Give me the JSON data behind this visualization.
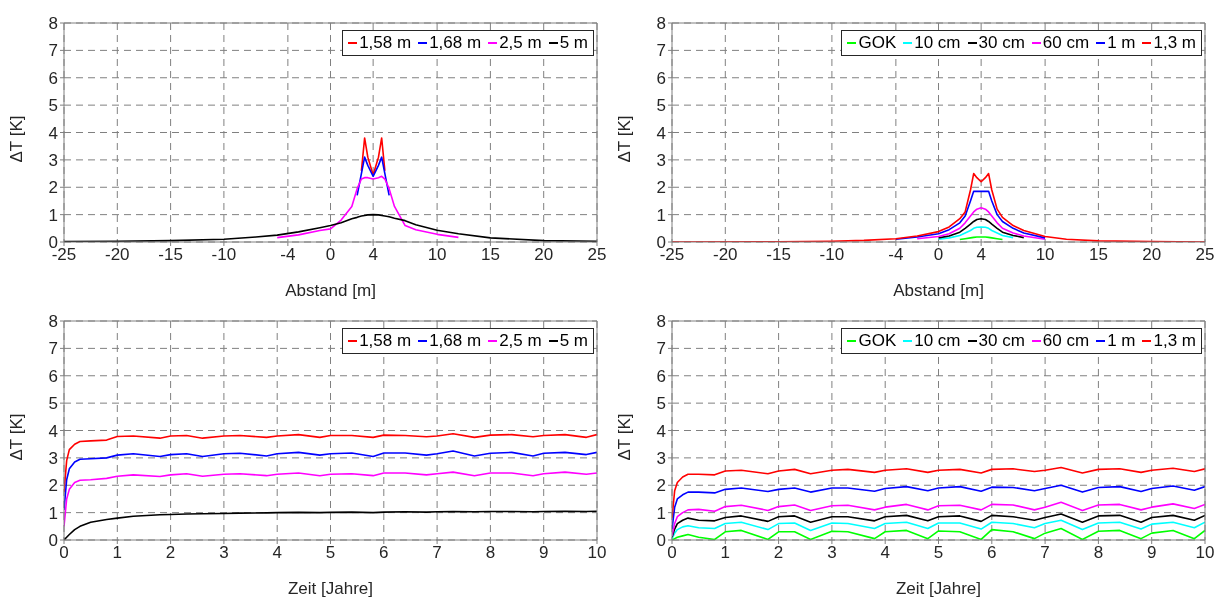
{
  "chart_data": [
    {
      "type": "line",
      "xlabel": "Abstand [m]",
      "ylabel": "ΔT [K]",
      "grid": true,
      "legend": "top right",
      "xlim": [
        -25,
        25
      ],
      "xticks": [
        -25,
        -20,
        -15,
        -10,
        -4,
        0,
        4,
        10,
        15,
        20,
        25
      ],
      "ylim": [
        0,
        8
      ],
      "yticks": [
        0,
        1,
        2,
        3,
        4,
        5,
        6,
        7,
        8
      ],
      "x": [
        -25,
        -20,
        -15,
        -10,
        -7,
        -5,
        -3,
        -1,
        0,
        1,
        2,
        2.5,
        2.9,
        3.2,
        3.5,
        4,
        4.5,
        4.8,
        5.1,
        5.5,
        6,
        7,
        8,
        10,
        12,
        15,
        20,
        25
      ],
      "series": [
        {
          "name": "1,58 m",
          "color": "#ff0000",
          "values": [
            null,
            null,
            null,
            null,
            null,
            null,
            null,
            null,
            null,
            null,
            null,
            null,
            2.6,
            3.8,
            3.1,
            2.45,
            3.1,
            3.8,
            2.6,
            null,
            null,
            null,
            null,
            null,
            null,
            null,
            null,
            null
          ]
        },
        {
          "name": "1,68 m",
          "color": "#0000ff",
          "values": [
            null,
            null,
            null,
            null,
            null,
            null,
            null,
            null,
            null,
            null,
            null,
            1.7,
            2.5,
            3.1,
            2.8,
            2.4,
            2.8,
            3.1,
            2.5,
            1.7,
            null,
            null,
            null,
            null,
            null,
            null,
            null,
            null
          ]
        },
        {
          "name": "2,5 m",
          "color": "#ff00ff",
          "values": [
            null,
            null,
            null,
            null,
            null,
            0.16,
            0.26,
            0.42,
            0.48,
            0.8,
            1.3,
            1.95,
            2.3,
            2.35,
            2.35,
            2.3,
            2.35,
            2.4,
            2.3,
            1.95,
            1.3,
            0.6,
            0.45,
            0.28,
            0.17,
            null,
            null,
            null
          ]
        },
        {
          "name": "5 m",
          "color": "#000000",
          "values": [
            0.02,
            0.03,
            0.05,
            0.1,
            0.18,
            0.25,
            0.37,
            0.52,
            0.6,
            0.7,
            0.85,
            0.9,
            0.95,
            0.97,
            0.99,
            1.0,
            0.99,
            0.97,
            0.95,
            0.92,
            0.87,
            0.78,
            0.63,
            0.43,
            0.3,
            0.15,
            0.05,
            0.03
          ]
        }
      ]
    },
    {
      "type": "line",
      "xlabel": "Abstand [m]",
      "ylabel": "ΔT [K]",
      "grid": true,
      "legend": "top right",
      "xlim": [
        -25,
        25
      ],
      "xticks": [
        -25,
        -20,
        -15,
        -10,
        -4,
        0,
        4,
        10,
        15,
        20,
        25
      ],
      "ylim": [
        0,
        8
      ],
      "yticks": [
        0,
        1,
        2,
        3,
        4,
        5,
        6,
        7,
        8
      ],
      "x": [
        -25,
        -15,
        -10,
        -7,
        -4,
        -2,
        0,
        1,
        2,
        2.5,
        3,
        3.3,
        3.6,
        4,
        4.4,
        4.7,
        5,
        5.5,
        6,
        7,
        8,
        10,
        12,
        15,
        20,
        25
      ],
      "series": [
        {
          "name": "GOK",
          "color": "#00ff00",
          "values": [
            null,
            null,
            null,
            null,
            null,
            null,
            null,
            null,
            0.09,
            0.12,
            0.15,
            0.17,
            0.18,
            0.18,
            0.18,
            0.17,
            0.15,
            0.12,
            0.09,
            null,
            null,
            null,
            null,
            null,
            null,
            null
          ]
        },
        {
          "name": "10 cm",
          "color": "#00ffff",
          "values": [
            null,
            null,
            null,
            null,
            null,
            null,
            0.1,
            0.15,
            0.24,
            0.33,
            0.42,
            0.5,
            0.54,
            0.55,
            0.54,
            0.5,
            0.42,
            0.33,
            0.24,
            0.16,
            null,
            null,
            null,
            null,
            null,
            null
          ]
        },
        {
          "name": "30 cm",
          "color": "#000000",
          "values": [
            null,
            null,
            null,
            null,
            null,
            null,
            0.15,
            0.22,
            0.36,
            0.5,
            0.65,
            0.75,
            0.82,
            0.85,
            0.82,
            0.75,
            0.65,
            0.5,
            0.36,
            0.24,
            0.16,
            null,
            null,
            null,
            null,
            null
          ]
        },
        {
          "name": "60 cm",
          "color": "#ff00ff",
          "values": [
            null,
            null,
            null,
            null,
            null,
            0.12,
            0.2,
            0.3,
            0.5,
            0.7,
            0.95,
            1.1,
            1.2,
            1.25,
            1.2,
            1.1,
            0.95,
            0.7,
            0.5,
            0.33,
            0.22,
            0.1,
            null,
            null,
            null,
            null
          ]
        },
        {
          "name": "1 m",
          "color": "#0000ff",
          "values": [
            null,
            null,
            null,
            null,
            0.1,
            0.18,
            0.3,
            0.45,
            0.7,
            0.95,
            1.5,
            1.85,
            1.85,
            1.85,
            1.85,
            1.85,
            1.5,
            1.0,
            0.75,
            0.5,
            0.33,
            0.15,
            null,
            null,
            null,
            null
          ]
        },
        {
          "name": "1,3 m",
          "color": "#ff0000",
          "values": [
            0,
            0.01,
            0.03,
            0.06,
            0.12,
            0.22,
            0.38,
            0.55,
            0.85,
            1.1,
            1.9,
            2.5,
            2.35,
            2.2,
            2.35,
            2.5,
            1.9,
            1.2,
            0.9,
            0.6,
            0.42,
            0.2,
            0.1,
            0.04,
            0.02,
            0
          ]
        }
      ]
    },
    {
      "type": "line",
      "xlabel": "Zeit [Jahre]",
      "ylabel": "ΔT [K]",
      "grid": true,
      "legend": "top right",
      "xlim": [
        0,
        10
      ],
      "xticks": [
        0,
        1,
        2,
        3,
        4,
        5,
        6,
        7,
        8,
        9,
        10
      ],
      "ylim": [
        0,
        8
      ],
      "yticks": [
        0,
        1,
        2,
        3,
        4,
        5,
        6,
        7,
        8
      ],
      "x": [
        0,
        0.05,
        0.1,
        0.2,
        0.3,
        0.5,
        0.8,
        1,
        1.3,
        1.8,
        2,
        2.3,
        2.6,
        3,
        3.3,
        3.8,
        4,
        4.4,
        4.8,
        5,
        5.4,
        5.8,
        6,
        6.4,
        6.8,
        7,
        7.3,
        7.7,
        8,
        8.4,
        8.8,
        9,
        9.4,
        9.8,
        10
      ],
      "series": [
        {
          "name": "1,58 m",
          "color": "#ff0000",
          "values": [
            1.75,
            2.9,
            3.3,
            3.5,
            3.6,
            3.62,
            3.65,
            3.78,
            3.8,
            3.72,
            3.8,
            3.82,
            3.72,
            3.8,
            3.82,
            3.75,
            3.8,
            3.85,
            3.75,
            3.82,
            3.82,
            3.75,
            3.83,
            3.82,
            3.77,
            3.8,
            3.88,
            3.75,
            3.83,
            3.85,
            3.77,
            3.82,
            3.85,
            3.75,
            3.85
          ]
        },
        {
          "name": "1,68 m",
          "color": "#0000ff",
          "values": [
            1.1,
            2.2,
            2.6,
            2.85,
            2.95,
            2.97,
            3.0,
            3.1,
            3.15,
            3.05,
            3.12,
            3.15,
            3.05,
            3.15,
            3.17,
            3.07,
            3.15,
            3.2,
            3.1,
            3.15,
            3.18,
            3.05,
            3.18,
            3.18,
            3.1,
            3.15,
            3.25,
            3.07,
            3.17,
            3.2,
            3.07,
            3.17,
            3.2,
            3.12,
            3.2
          ]
        },
        {
          "name": "2,5 m",
          "color": "#ff00ff",
          "values": [
            0.5,
            1.5,
            1.85,
            2.1,
            2.18,
            2.2,
            2.25,
            2.33,
            2.38,
            2.32,
            2.38,
            2.42,
            2.33,
            2.4,
            2.42,
            2.35,
            2.4,
            2.45,
            2.35,
            2.4,
            2.42,
            2.35,
            2.45,
            2.45,
            2.38,
            2.42,
            2.48,
            2.35,
            2.45,
            2.45,
            2.35,
            2.42,
            2.48,
            2.4,
            2.45
          ]
        },
        {
          "name": "5 m",
          "color": "#000000",
          "values": [
            0,
            0.1,
            0.2,
            0.38,
            0.5,
            0.65,
            0.75,
            0.8,
            0.87,
            0.92,
            0.93,
            0.95,
            0.96,
            0.97,
            0.98,
            0.99,
            1.0,
            1.01,
            1.0,
            1.01,
            1.02,
            1.0,
            1.02,
            1.03,
            1.02,
            1.03,
            1.04,
            1.03,
            1.04,
            1.04,
            1.03,
            1.04,
            1.05,
            1.04,
            1.05
          ]
        }
      ]
    },
    {
      "type": "line",
      "xlabel": "Zeit [Jahre]",
      "ylabel": "ΔT [K]",
      "grid": true,
      "legend": "top right",
      "xlim": [
        0,
        10
      ],
      "xticks": [
        0,
        1,
        2,
        3,
        4,
        5,
        6,
        7,
        8,
        9,
        10
      ],
      "ylim": [
        0,
        8
      ],
      "yticks": [
        0,
        1,
        2,
        3,
        4,
        5,
        6,
        7,
        8
      ],
      "x": [
        0,
        0.05,
        0.1,
        0.2,
        0.3,
        0.5,
        0.8,
        1,
        1.3,
        1.8,
        2,
        2.3,
        2.6,
        3,
        3.3,
        3.8,
        4,
        4.4,
        4.8,
        5,
        5.4,
        5.8,
        6,
        6.4,
        6.8,
        7,
        7.3,
        7.7,
        8,
        8.4,
        8.8,
        9,
        9.4,
        9.8,
        10
      ],
      "series": [
        {
          "name": "GOK",
          "color": "#00ff00",
          "values": [
            0,
            0.05,
            0.1,
            0.15,
            0.2,
            0.1,
            0.02,
            0.3,
            0.35,
            0.02,
            0.3,
            0.3,
            0.02,
            0.32,
            0.3,
            0.05,
            0.3,
            0.35,
            0.05,
            0.33,
            0.3,
            0.02,
            0.38,
            0.3,
            0.05,
            0.25,
            0.42,
            0.02,
            0.32,
            0.35,
            0.05,
            0.25,
            0.35,
            0.05,
            0.35
          ]
        },
        {
          "name": "10 cm",
          "color": "#00ffff",
          "values": [
            0.05,
            0.25,
            0.38,
            0.48,
            0.52,
            0.45,
            0.42,
            0.6,
            0.65,
            0.38,
            0.6,
            0.62,
            0.35,
            0.62,
            0.6,
            0.42,
            0.6,
            0.65,
            0.42,
            0.62,
            0.62,
            0.4,
            0.65,
            0.6,
            0.45,
            0.6,
            0.72,
            0.38,
            0.62,
            0.65,
            0.4,
            0.58,
            0.65,
            0.45,
            0.65
          ]
        },
        {
          "name": "30 cm",
          "color": "#000000",
          "values": [
            0.1,
            0.4,
            0.6,
            0.72,
            0.8,
            0.72,
            0.7,
            0.82,
            0.88,
            0.68,
            0.85,
            0.88,
            0.65,
            0.85,
            0.85,
            0.7,
            0.85,
            0.9,
            0.7,
            0.85,
            0.88,
            0.68,
            0.9,
            0.85,
            0.72,
            0.82,
            0.95,
            0.65,
            0.88,
            0.9,
            0.65,
            0.82,
            0.9,
            0.72,
            0.9
          ]
        },
        {
          "name": "60 cm",
          "color": "#ff00ff",
          "values": [
            0.15,
            0.6,
            0.85,
            1.0,
            1.1,
            1.12,
            1.05,
            1.22,
            1.27,
            1.08,
            1.22,
            1.28,
            1.08,
            1.25,
            1.27,
            1.1,
            1.2,
            1.3,
            1.1,
            1.25,
            1.27,
            1.1,
            1.3,
            1.28,
            1.1,
            1.2,
            1.38,
            1.08,
            1.28,
            1.3,
            1.1,
            1.2,
            1.32,
            1.15,
            1.3
          ]
        },
        {
          "name": "1 m",
          "color": "#0000ff",
          "values": [
            0.4,
            1.2,
            1.5,
            1.65,
            1.75,
            1.75,
            1.72,
            1.85,
            1.9,
            1.77,
            1.85,
            1.9,
            1.75,
            1.9,
            1.9,
            1.78,
            1.88,
            1.95,
            1.8,
            1.9,
            1.95,
            1.78,
            1.93,
            1.92,
            1.8,
            1.88,
            2.0,
            1.75,
            1.92,
            1.95,
            1.77,
            1.88,
            1.97,
            1.82,
            1.95
          ]
        },
        {
          "name": "1,3 m",
          "color": "#ff0000",
          "values": [
            0.8,
            1.8,
            2.1,
            2.3,
            2.4,
            2.4,
            2.38,
            2.52,
            2.55,
            2.42,
            2.52,
            2.58,
            2.42,
            2.55,
            2.58,
            2.47,
            2.55,
            2.6,
            2.47,
            2.55,
            2.58,
            2.45,
            2.58,
            2.6,
            2.5,
            2.55,
            2.65,
            2.45,
            2.58,
            2.6,
            2.47,
            2.55,
            2.62,
            2.5,
            2.6
          ]
        }
      ]
    }
  ]
}
